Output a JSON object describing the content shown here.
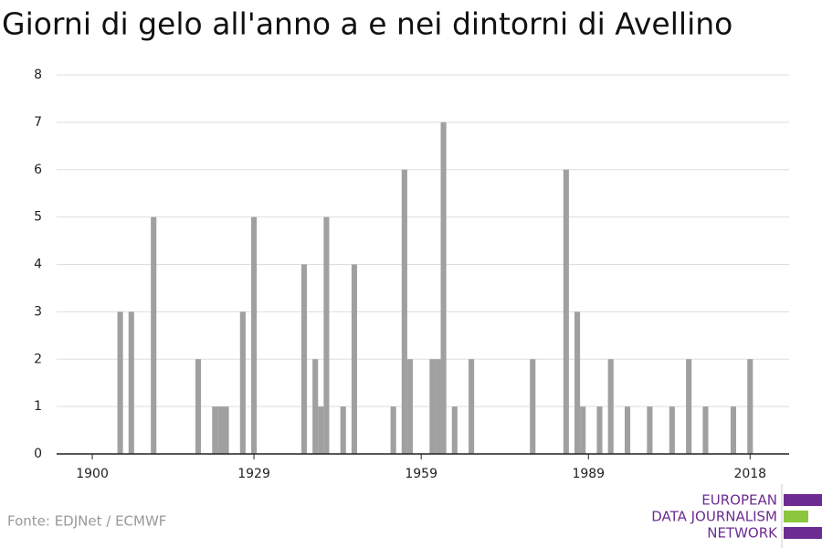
{
  "chart_data": {
    "type": "bar",
    "title": "Giorni di gelo all'anno a e nei dintorni di Avellino",
    "x": [
      1905,
      1907,
      1911,
      1919,
      1922,
      1923,
      1924,
      1927,
      1929,
      1938,
      1940,
      1941,
      1942,
      1945,
      1947,
      1954,
      1956,
      1957,
      1961,
      1962,
      1963,
      1965,
      1968,
      1979,
      1985,
      1987,
      1988,
      1991,
      1993,
      1996,
      2000,
      2004,
      2007,
      2010,
      2015,
      2018
    ],
    "values": [
      3,
      3,
      5,
      2,
      1,
      1,
      1,
      3,
      5,
      4,
      2,
      1,
      5,
      1,
      4,
      1,
      6,
      2,
      2,
      2,
      7,
      1,
      2,
      2,
      6,
      3,
      1,
      1,
      2,
      1,
      1,
      1,
      2,
      1,
      1,
      2
    ],
    "color": "#a0a0a0",
    "xlim": [
      1893.6,
      2025
    ],
    "xticks": [
      1900,
      1929,
      1959,
      1989,
      2018
    ],
    "ylim": [
      0,
      8
    ],
    "yticks": [
      0,
      1,
      2,
      3,
      4,
      5,
      6,
      7,
      8
    ],
    "grid": true,
    "source": "Fonte: EDJNet / ECMWF",
    "credit_lines": [
      "EUROPEAN",
      "DATA JOURNALISM",
      "NETWORK"
    ]
  }
}
